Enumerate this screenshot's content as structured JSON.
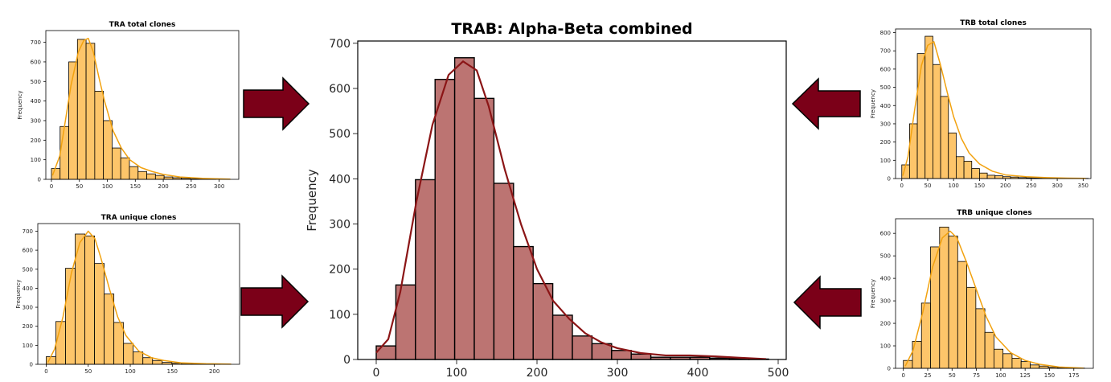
{
  "colors": {
    "small_bar": "#FDC56A",
    "small_line": "#F2A20F",
    "main_bar": "#BC7472",
    "main_line": "#8B1516",
    "arrow_fill": "#7B0018",
    "bar_edge": "#000000"
  },
  "chart_data": [
    {
      "id": "tra_total",
      "type": "bar",
      "title": "TRA total clones",
      "xlabel": "",
      "ylabel": "Frequency",
      "bin_start": 0,
      "bin_width": 15.5,
      "values": [
        55,
        270,
        600,
        715,
        695,
        450,
        300,
        160,
        110,
        65,
        40,
        28,
        20,
        12,
        8,
        5,
        3,
        2,
        1
      ],
      "xlim": [
        -10,
        335
      ],
      "ylim": [
        0,
        760
      ],
      "xticks": [
        0,
        50,
        100,
        150,
        200,
        250,
        300
      ],
      "yticks": [
        0,
        100,
        200,
        300,
        400,
        500,
        600,
        700
      ],
      "kde": [
        [
          2,
          20
        ],
        [
          15,
          120
        ],
        [
          25,
          300
        ],
        [
          35,
          480
        ],
        [
          48,
          650
        ],
        [
          58,
          710
        ],
        [
          66,
          720
        ],
        [
          75,
          650
        ],
        [
          85,
          520
        ],
        [
          95,
          400
        ],
        [
          110,
          250
        ],
        [
          125,
          160
        ],
        [
          140,
          100
        ],
        [
          160,
          60
        ],
        [
          180,
          40
        ],
        [
          200,
          25
        ],
        [
          230,
          12
        ],
        [
          270,
          5
        ],
        [
          320,
          1
        ]
      ],
      "grid": false,
      "legend": "none"
    },
    {
      "id": "tra_unique",
      "type": "bar",
      "title": "TRA unique clones",
      "xlabel": "",
      "ylabel": "Frequency",
      "bin_start": 0,
      "bin_width": 11.5,
      "values": [
        40,
        225,
        505,
        685,
        675,
        530,
        370,
        220,
        110,
        65,
        35,
        20,
        10,
        6,
        5,
        3,
        2,
        1
      ],
      "xlim": [
        -10,
        230
      ],
      "ylim": [
        0,
        740
      ],
      "xticks": [
        0,
        50,
        100,
        150,
        200
      ],
      "yticks": [
        0,
        100,
        200,
        300,
        400,
        500,
        600,
        700
      ],
      "kde": [
        [
          2,
          10
        ],
        [
          10,
          80
        ],
        [
          20,
          250
        ],
        [
          30,
          480
        ],
        [
          40,
          640
        ],
        [
          50,
          700
        ],
        [
          58,
          660
        ],
        [
          65,
          560
        ],
        [
          75,
          400
        ],
        [
          85,
          250
        ],
        [
          95,
          150
        ],
        [
          110,
          70
        ],
        [
          125,
          35
        ],
        [
          140,
          20
        ],
        [
          160,
          8
        ],
        [
          190,
          3
        ],
        [
          220,
          1
        ]
      ],
      "grid": false,
      "legend": "none"
    },
    {
      "id": "trab",
      "type": "bar",
      "title": "TRAB: Alpha-Beta combined",
      "xlabel": "",
      "ylabel": "Frequency",
      "bin_start": 0,
      "bin_width": 24.4,
      "values": [
        30,
        165,
        398,
        620,
        668,
        578,
        390,
        250,
        168,
        98,
        52,
        35,
        20,
        12,
        5,
        5,
        5,
        3,
        2,
        1
      ],
      "xlim": [
        -23,
        510
      ],
      "ylim": [
        0,
        705
      ],
      "xticks": [
        0,
        100,
        200,
        300,
        400,
        500
      ],
      "yticks": [
        0,
        100,
        200,
        300,
        400,
        500,
        600,
        700
      ],
      "kde": [
        [
          0,
          15
        ],
        [
          15,
          45
        ],
        [
          30,
          150
        ],
        [
          50,
          350
        ],
        [
          70,
          520
        ],
        [
          90,
          630
        ],
        [
          108,
          660
        ],
        [
          125,
          640
        ],
        [
          140,
          560
        ],
        [
          160,
          420
        ],
        [
          180,
          300
        ],
        [
          200,
          200
        ],
        [
          220,
          130
        ],
        [
          240,
          90
        ],
        [
          260,
          58
        ],
        [
          280,
          38
        ],
        [
          300,
          25
        ],
        [
          330,
          14
        ],
        [
          360,
          9
        ],
        [
          390,
          9
        ],
        [
          420,
          7
        ],
        [
          450,
          4
        ],
        [
          485,
          1
        ]
      ],
      "grid": false,
      "legend": "none"
    },
    {
      "id": "trb_total",
      "type": "bar",
      "title": "TRB total clones",
      "xlabel": "",
      "ylabel": "Frequency",
      "bin_start": 0,
      "bin_width": 15,
      "values": [
        75,
        300,
        685,
        780,
        625,
        450,
        250,
        120,
        95,
        55,
        30,
        18,
        15,
        10,
        8,
        5,
        4,
        3,
        2,
        1,
        1,
        1,
        1,
        1
      ],
      "xlim": [
        -12,
        365
      ],
      "ylim": [
        0,
        820
      ],
      "xticks": [
        0,
        50,
        100,
        150,
        200,
        250,
        300,
        350
      ],
      "yticks": [
        0,
        100,
        200,
        300,
        400,
        500,
        600,
        700,
        800
      ],
      "kde": [
        [
          2,
          15
        ],
        [
          12,
          120
        ],
        [
          25,
          380
        ],
        [
          38,
          620
        ],
        [
          50,
          730
        ],
        [
          62,
          750
        ],
        [
          75,
          620
        ],
        [
          88,
          470
        ],
        [
          100,
          340
        ],
        [
          115,
          220
        ],
        [
          130,
          140
        ],
        [
          150,
          80
        ],
        [
          175,
          40
        ],
        [
          200,
          20
        ],
        [
          240,
          10
        ],
        [
          280,
          5
        ],
        [
          320,
          2
        ],
        [
          355,
          1
        ]
      ],
      "grid": false,
      "legend": "none"
    },
    {
      "id": "trb_unique",
      "type": "bar",
      "title": "TRB unique clones",
      "xlabel": "",
      "ylabel": "Frequency",
      "bin_start": 0,
      "bin_width": 9.3,
      "values": [
        35,
        120,
        290,
        540,
        628,
        588,
        475,
        360,
        265,
        160,
        85,
        65,
        45,
        30,
        15,
        10,
        5,
        3,
        2,
        1
      ],
      "xlim": [
        -8,
        195
      ],
      "ylim": [
        0,
        665
      ],
      "xticks": [
        0,
        25,
        50,
        75,
        100,
        125,
        150,
        175
      ],
      "yticks": [
        0,
        100,
        200,
        300,
        400,
        500,
        600
      ],
      "kde": [
        [
          2,
          10
        ],
        [
          10,
          80
        ],
        [
          20,
          250
        ],
        [
          30,
          450
        ],
        [
          40,
          580
        ],
        [
          48,
          610
        ],
        [
          55,
          580
        ],
        [
          65,
          470
        ],
        [
          75,
          350
        ],
        [
          85,
          230
        ],
        [
          95,
          140
        ],
        [
          110,
          70
        ],
        [
          125,
          35
        ],
        [
          140,
          18
        ],
        [
          160,
          6
        ],
        [
          185,
          1
        ]
      ],
      "grid": false,
      "legend": "none"
    }
  ]
}
